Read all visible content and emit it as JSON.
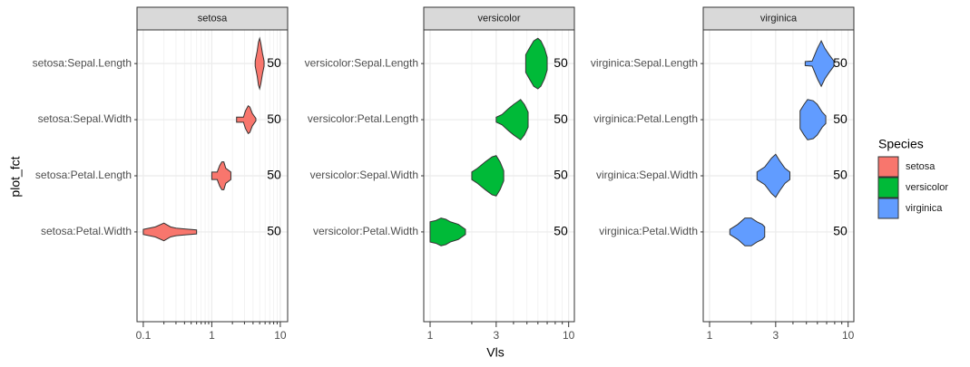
{
  "chart_data": {
    "type": "violin",
    "x_label": "Vls",
    "y_label": "plot_fct",
    "log_x": true,
    "grid": true,
    "legend": {
      "title": "Species",
      "entries": [
        {
          "name": "setosa",
          "color": "#F8766D"
        },
        {
          "name": "versicolor",
          "color": "#00BA38"
        },
        {
          "name": "virginica",
          "color": "#619CFF"
        }
      ]
    },
    "panels": [
      {
        "title": "setosa",
        "color": "#F8766D",
        "categories": [
          "setosa:Sepal.Length",
          "setosa:Sepal.Width",
          "setosa:Petal.Length",
          "setosa:Petal.Width"
        ],
        "violins": [
          {
            "x": [
              4.3,
              4.6,
              4.8,
              5.0,
              5.2,
              5.5,
              5.8
            ],
            "density": [
              0.1,
              0.5,
              0.85,
              1.0,
              0.8,
              0.4,
              0.1
            ]
          },
          {
            "x": [
              2.3,
              2.9,
              3.1,
              3.4,
              3.6,
              3.9,
              4.4
            ],
            "density": [
              0.1,
              0.1,
              0.35,
              0.55,
              0.5,
              0.25,
              0.05
            ]
          },
          {
            "x": [
              1.0,
              1.2,
              1.3,
              1.4,
              1.5,
              1.6,
              1.9
            ],
            "density": [
              0.15,
              0.15,
              0.4,
              0.55,
              0.55,
              0.3,
              0.15
            ]
          },
          {
            "x": [
              0.1,
              0.15,
              0.2,
              0.25,
              0.3,
              0.4,
              0.6
            ],
            "density": [
              0.1,
              0.2,
              0.35,
              0.2,
              0.15,
              0.12,
              0.08
            ]
          }
        ],
        "counts": [
          50,
          50,
          50,
          50
        ],
        "xlim": [
          0.081,
          12.8
        ],
        "xticks": [
          0.1,
          1,
          10
        ],
        "minor_ticks": [
          0.2,
          0.3,
          0.4,
          0.5,
          0.6,
          0.7,
          0.8,
          0.9,
          2,
          3,
          4,
          5,
          6,
          7,
          8,
          9
        ]
      },
      {
        "title": "versicolor",
        "color": "#00BA38",
        "categories": [
          "versicolor:Sepal.Length",
          "versicolor:Petal.Length",
          "versicolor:Sepal.Width",
          "versicolor:Petal.Width"
        ],
        "violins": [
          {
            "x": [
              4.9,
              5.2,
              5.6,
              6.0,
              6.3,
              6.7,
              7.0
            ],
            "density": [
              0.35,
              0.6,
              0.9,
              1.0,
              0.9,
              0.6,
              0.25
            ]
          },
          {
            "x": [
              3.0,
              3.3,
              3.7,
              4.0,
              4.5,
              4.8,
              5.1
            ],
            "density": [
              0.1,
              0.2,
              0.45,
              0.6,
              0.8,
              0.6,
              0.3
            ]
          },
          {
            "x": [
              2.0,
              2.2,
              2.5,
              2.8,
              3.0,
              3.2,
              3.4
            ],
            "density": [
              0.15,
              0.3,
              0.55,
              0.75,
              0.8,
              0.55,
              0.2
            ]
          },
          {
            "x": [
              1.0,
              1.1,
              1.2,
              1.3,
              1.4,
              1.6,
              1.8
            ],
            "density": [
              0.4,
              0.45,
              0.55,
              0.5,
              0.4,
              0.3,
              0.1
            ]
          }
        ],
        "counts": [
          50,
          50,
          50,
          50
        ],
        "xlim": [
          0.9,
          11
        ],
        "xticks": [
          1,
          3,
          10
        ],
        "minor_ticks": [
          2,
          4,
          5,
          6,
          7,
          8,
          9
        ]
      },
      {
        "title": "virginica",
        "color": "#619CFF",
        "categories": [
          "virginica:Sepal.Length",
          "virginica:Petal.Length",
          "virginica:Sepal.Width",
          "virginica:Petal.Width"
        ],
        "violins": [
          {
            "x": [
              4.9,
              5.5,
              6.0,
              6.4,
              6.8,
              7.3,
              7.9
            ],
            "density": [
              0.08,
              0.1,
              0.6,
              0.9,
              0.6,
              0.35,
              0.1
            ]
          },
          {
            "x": [
              4.5,
              4.8,
              5.1,
              5.6,
              6.0,
              6.5,
              6.9
            ],
            "density": [
              0.35,
              0.6,
              0.8,
              0.75,
              0.6,
              0.3,
              0.15
            ]
          },
          {
            "x": [
              2.2,
              2.5,
              2.8,
              3.0,
              3.2,
              3.5,
              3.8
            ],
            "density": [
              0.15,
              0.35,
              0.7,
              0.85,
              0.6,
              0.3,
              0.15
            ]
          },
          {
            "x": [
              1.4,
              1.6,
              1.8,
              2.0,
              2.2,
              2.4,
              2.5
            ],
            "density": [
              0.1,
              0.3,
              0.55,
              0.55,
              0.4,
              0.3,
              0.2
            ]
          }
        ],
        "counts": [
          50,
          50,
          50,
          50
        ],
        "xlim": [
          0.9,
          11
        ],
        "xticks": [
          1,
          3,
          10
        ],
        "minor_ticks": [
          2,
          4,
          5,
          6,
          7,
          8,
          9
        ]
      }
    ]
  }
}
